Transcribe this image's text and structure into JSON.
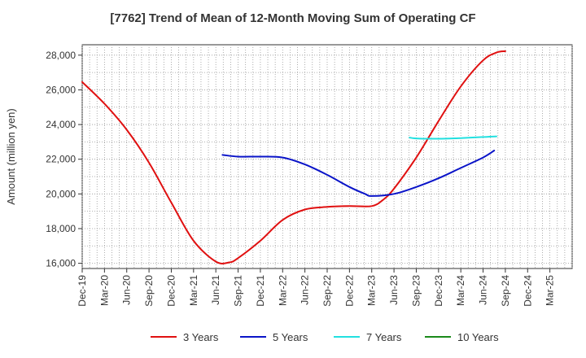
{
  "chart_data": {
    "type": "line",
    "title": "[7762]  Trend of Mean of 12-Month Moving Sum of Operating CF",
    "xlabel": "",
    "ylabel": "Amount (million yen)",
    "ylim": [
      15700,
      28600
    ],
    "yticks": [
      16000,
      18000,
      20000,
      22000,
      24000,
      26000,
      28000
    ],
    "ytick_labels": [
      "16,000",
      "18,000",
      "20,000",
      "22,000",
      "24,000",
      "26,000",
      "28,000"
    ],
    "x_labels": [
      "Dec-19",
      "Mar-20",
      "Jun-20",
      "Sep-20",
      "Dec-20",
      "Mar-21",
      "Jun-21",
      "Sep-21",
      "Dec-21",
      "Mar-22",
      "Jun-22",
      "Sep-22",
      "Dec-22",
      "Mar-23",
      "Jun-23",
      "Sep-23",
      "Dec-23",
      "Mar-24",
      "Jun-24",
      "Sep-24",
      "Dec-24",
      "Mar-25"
    ],
    "grid": true,
    "legend_position": "bottom",
    "series": [
      {
        "name": "3 Years",
        "color": "#e01010",
        "points": [
          [
            0,
            26450
          ],
          [
            1,
            25200
          ],
          [
            2,
            23700
          ],
          [
            3,
            21800
          ],
          [
            4,
            19500
          ],
          [
            5,
            17300
          ],
          [
            6,
            16100
          ],
          [
            6.6,
            16050
          ],
          [
            7,
            16300
          ],
          [
            8,
            17300
          ],
          [
            9,
            18500
          ],
          [
            10,
            19100
          ],
          [
            11,
            19250
          ],
          [
            12,
            19300
          ],
          [
            13,
            19300
          ],
          [
            13.5,
            19650
          ],
          [
            14,
            20300
          ],
          [
            15,
            22100
          ],
          [
            16,
            24200
          ],
          [
            17,
            26200
          ],
          [
            18,
            27700
          ],
          [
            18.6,
            28150
          ],
          [
            19,
            28230
          ]
        ]
      },
      {
        "name": "5 Years",
        "color": "#0a14c8",
        "points": [
          [
            6.3,
            22250
          ],
          [
            7,
            22150
          ],
          [
            8,
            22150
          ],
          [
            9,
            22100
          ],
          [
            10,
            21700
          ],
          [
            11,
            21100
          ],
          [
            12,
            20400
          ],
          [
            12.7,
            20000
          ],
          [
            13,
            19880
          ],
          [
            14,
            20000
          ],
          [
            15,
            20400
          ],
          [
            16,
            20900
          ],
          [
            17,
            21500
          ],
          [
            18,
            22100
          ],
          [
            18.5,
            22500
          ]
        ]
      },
      {
        "name": "7 Years",
        "color": "#22e0e0",
        "points": [
          [
            14.7,
            23250
          ],
          [
            15,
            23200
          ],
          [
            16,
            23180
          ],
          [
            17,
            23220
          ],
          [
            18,
            23280
          ],
          [
            18.6,
            23320
          ]
        ]
      },
      {
        "name": "10 Years",
        "color": "#1a8a1a",
        "points": []
      }
    ]
  }
}
